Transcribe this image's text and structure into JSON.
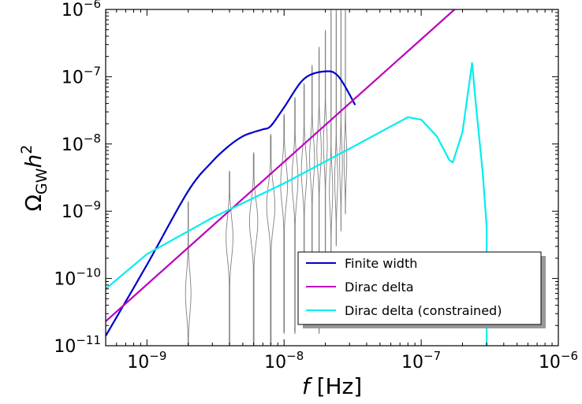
{
  "chart_data": {
    "type": "line",
    "xscale": "log",
    "yscale": "log",
    "xlim": [
      5e-10,
      1e-06
    ],
    "ylim": [
      1e-11,
      1e-06
    ],
    "xlabel": {
      "italic": "f",
      "rest": " [Hz]"
    },
    "ylabel": {
      "omega": "Ω",
      "sub": "GW",
      "h": "h",
      "sup": "2"
    },
    "x_ticks": [
      {
        "value": 1e-09,
        "base": "10",
        "exp": "−9"
      },
      {
        "value": 1e-08,
        "base": "10",
        "exp": "−8"
      },
      {
        "value": 1e-07,
        "base": "10",
        "exp": "−7"
      },
      {
        "value": 1e-06,
        "base": "10",
        "exp": "−6"
      }
    ],
    "y_ticks": [
      {
        "value": 1e-11,
        "base": "10",
        "exp": "−11"
      },
      {
        "value": 1e-10,
        "base": "10",
        "exp": "−10"
      },
      {
        "value": 1e-09,
        "base": "10",
        "exp": "−9"
      },
      {
        "value": 1e-08,
        "base": "10",
        "exp": "−8"
      },
      {
        "value": 1e-07,
        "base": "10",
        "exp": "−7"
      },
      {
        "value": 1e-06,
        "base": "10",
        "exp": "−6"
      }
    ],
    "legend_position": "lower-right",
    "series": [
      {
        "name": "Finite width",
        "color": "#0000cc",
        "points": [
          [
            5e-10,
            1.4e-11
          ],
          [
            1e-09,
            1.6e-10
          ],
          [
            2e-09,
            2e-09
          ],
          [
            3e-09,
            5.5e-09
          ],
          [
            4e-09,
            9.5e-09
          ],
          [
            5e-09,
            1.3e-08
          ],
          [
            6e-09,
            1.5e-08
          ],
          [
            7e-09,
            1.65e-08
          ],
          [
            8e-09,
            1.85e-08
          ],
          [
            1e-08,
            3.5e-08
          ],
          [
            1.4e-08,
            9.3e-08
          ],
          [
            2e-08,
            1.2e-07
          ],
          [
            2.5e-08,
            1e-07
          ],
          [
            3.3e-08,
            3.8e-08
          ]
        ]
      },
      {
        "name": "Dirac delta",
        "color": "#bb00bb",
        "points": [
          [
            5e-10,
            2.3e-11
          ],
          [
            1.75e-07,
            1e-06
          ]
        ]
      },
      {
        "name": "Dirac delta (constrained)",
        "color": "#00eeee",
        "points": [
          [
            5e-10,
            7e-11
          ],
          [
            1e-09,
            2.3e-10
          ],
          [
            3e-09,
            8e-10
          ],
          [
            1e-08,
            2.6e-09
          ],
          [
            3e-08,
            8.5e-09
          ],
          [
            8e-08,
            2.5e-08
          ],
          [
            1e-07,
            2.3e-08
          ],
          [
            1.3e-07,
            1.3e-08
          ],
          [
            1.6e-07,
            5.8e-09
          ],
          [
            1.7e-07,
            5.3e-09
          ],
          [
            2e-07,
            1.5e-08
          ],
          [
            2.35e-07,
            1.6e-07
          ],
          [
            2.5e-07,
            4e-08
          ],
          [
            2.8e-07,
            4e-09
          ],
          [
            3e-07,
            6e-10
          ],
          [
            3e-07,
            1e-11
          ]
        ]
      }
    ],
    "violins": {
      "color": "#808080",
      "items": [
        {
          "x": 2e-09,
          "y_min": 1e-11,
          "y_max": 1.4e-09,
          "y_peak": 6e-11,
          "peak_width_dex": 0.02,
          "sigma_dex": 0.3
        },
        {
          "x": 4e-09,
          "y_min": 1e-11,
          "y_max": 4e-09,
          "y_peak": 4e-10,
          "peak_width_dex": 0.025,
          "sigma_dex": 0.3
        },
        {
          "x": 6e-09,
          "y_min": 1e-11,
          "y_max": 7.5e-09,
          "y_peak": 7e-10,
          "peak_width_dex": 0.03,
          "sigma_dex": 0.3
        },
        {
          "x": 8e-09,
          "y_min": 1e-11,
          "y_max": 1.4e-08,
          "y_peak": 1.2e-09,
          "peak_width_dex": 0.03,
          "sigma_dex": 0.3
        },
        {
          "x": 1e-08,
          "y_min": 1.5e-11,
          "y_max": 2.8e-08,
          "y_peak": 2.5e-09,
          "peak_width_dex": 0.025,
          "sigma_dex": 0.3
        },
        {
          "x": 1.2e-08,
          "y_min": 1.5e-11,
          "y_max": 5e-08,
          "y_peak": 3e-09,
          "peak_width_dex": 0.022,
          "sigma_dex": 0.3
        },
        {
          "x": 1.4e-08,
          "y_min": 2e-11,
          "y_max": 8e-08,
          "y_peak": 4e-09,
          "peak_width_dex": 0.02,
          "sigma_dex": 0.3
        },
        {
          "x": 1.6e-08,
          "y_min": 2e-11,
          "y_max": 1.5e-07,
          "y_peak": 6e-09,
          "peak_width_dex": 0.018,
          "sigma_dex": 0.3
        },
        {
          "x": 1.8e-08,
          "y_min": 1.5e-11,
          "y_max": 2.8e-07,
          "y_peak": 8e-09,
          "peak_width_dex": 0.016,
          "sigma_dex": 0.3
        },
        {
          "x": 2e-08,
          "y_min": 2e-11,
          "y_max": 5e-07,
          "y_peak": 1e-08,
          "peak_width_dex": 0.014,
          "sigma_dex": 0.3
        },
        {
          "x": 2.2e-08,
          "y_min": 1e-10,
          "y_max": 1e-06,
          "y_peak": 2e-09,
          "peak_width_dex": 0.012,
          "sigma_dex": 0.3
        },
        {
          "x": 2.4e-08,
          "y_min": 3e-10,
          "y_max": 1e-06,
          "y_peak": 3e-09,
          "peak_width_dex": 0.011,
          "sigma_dex": 0.3
        },
        {
          "x": 2.6e-08,
          "y_min": 5e-10,
          "y_max": 1e-06,
          "y_peak": 5e-09,
          "peak_width_dex": 0.01,
          "sigma_dex": 0.3
        },
        {
          "x": 2.8e-08,
          "y_min": 9e-10,
          "y_max": 1e-06,
          "y_peak": 6e-09,
          "peak_width_dex": 0.01,
          "sigma_dex": 0.3
        }
      ]
    }
  }
}
